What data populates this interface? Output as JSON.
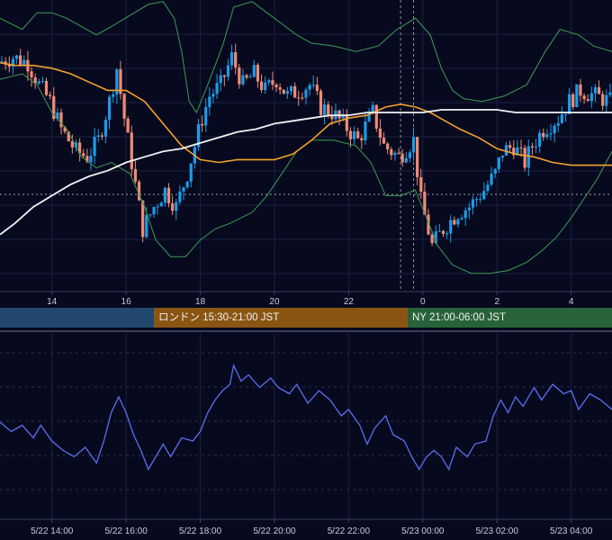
{
  "chart_data": [
    {
      "type": "candlestick",
      "panel": "price",
      "x_tick_labels": [
        "14",
        "16",
        "18",
        "20",
        "22",
        "0",
        "2",
        "4"
      ],
      "x_ticks_hours": [
        14,
        16,
        18,
        20,
        22,
        24,
        26,
        28
      ],
      "x_range_hours": [
        12.6,
        29.1
      ],
      "grid": true,
      "overlays": [
        {
          "label": "bollinger-upper",
          "color": "#3f9a55"
        },
        {
          "label": "bollinger-lower",
          "color": "#3f9a55"
        },
        {
          "label": "moving-average-short",
          "color": "#f3a02e"
        },
        {
          "label": "moving-average-long",
          "color": "#f2f2f2"
        }
      ],
      "candle_colors": {
        "up": "#1e9be8",
        "down": "#f28a74"
      },
      "anchors": [
        [
          12.6,
          0.8
        ],
        [
          13.0,
          0.82
        ],
        [
          13.4,
          0.8
        ],
        [
          13.7,
          0.72
        ],
        [
          14.0,
          0.66
        ],
        [
          14.3,
          0.56
        ],
        [
          14.7,
          0.48
        ],
        [
          15.0,
          0.46
        ],
        [
          15.3,
          0.52
        ],
        [
          15.6,
          0.66
        ],
        [
          15.8,
          0.78
        ],
        [
          16.0,
          0.6
        ],
        [
          16.3,
          0.36
        ],
        [
          16.5,
          0.2
        ],
        [
          16.8,
          0.28
        ],
        [
          17.1,
          0.34
        ],
        [
          17.4,
          0.28
        ],
        [
          17.7,
          0.4
        ],
        [
          17.9,
          0.5
        ],
        [
          18.1,
          0.6
        ],
        [
          18.3,
          0.68
        ],
        [
          18.6,
          0.72
        ],
        [
          18.9,
          0.82
        ],
        [
          19.2,
          0.72
        ],
        [
          19.5,
          0.76
        ],
        [
          19.8,
          0.7
        ],
        [
          20.1,
          0.74
        ],
        [
          20.4,
          0.68
        ],
        [
          20.7,
          0.7
        ],
        [
          21.0,
          0.72
        ],
        [
          21.3,
          0.64
        ],
        [
          21.6,
          0.62
        ],
        [
          21.9,
          0.58
        ],
        [
          22.3,
          0.52
        ],
        [
          22.7,
          0.62
        ],
        [
          23.0,
          0.5
        ],
        [
          23.4,
          0.46
        ],
        [
          23.8,
          0.52
        ],
        [
          24.0,
          0.3
        ],
        [
          24.3,
          0.14
        ],
        [
          24.6,
          0.2
        ],
        [
          25.0,
          0.26
        ],
        [
          25.3,
          0.28
        ],
        [
          25.7,
          0.34
        ],
        [
          26.0,
          0.4
        ],
        [
          26.2,
          0.48
        ],
        [
          26.5,
          0.5
        ],
        [
          26.8,
          0.44
        ],
        [
          27.0,
          0.5
        ],
        [
          27.3,
          0.56
        ],
        [
          27.7,
          0.6
        ],
        [
          28.0,
          0.66
        ],
        [
          28.3,
          0.7
        ],
        [
          28.7,
          0.68
        ],
        [
          29.1,
          0.66
        ]
      ],
      "bollinger_upper": [
        [
          12.6,
          0.96
        ],
        [
          13.2,
          0.92
        ],
        [
          13.6,
          0.98
        ],
        [
          14.0,
          0.98
        ],
        [
          14.4,
          0.96
        ],
        [
          14.8,
          0.93
        ],
        [
          15.2,
          0.9
        ],
        [
          15.6,
          0.93
        ],
        [
          16.1,
          0.97
        ],
        [
          16.6,
          1.01
        ],
        [
          17.0,
          1.02
        ],
        [
          17.3,
          0.96
        ],
        [
          17.5,
          0.84
        ],
        [
          17.7,
          0.66
        ],
        [
          17.9,
          0.62
        ],
        [
          18.2,
          0.72
        ],
        [
          18.6,
          0.86
        ],
        [
          18.9,
          1.0
        ],
        [
          19.4,
          1.02
        ],
        [
          19.8,
          0.98
        ],
        [
          20.2,
          0.94
        ],
        [
          20.6,
          0.9
        ],
        [
          21.0,
          0.87
        ],
        [
          21.6,
          0.86
        ],
        [
          22.2,
          0.84
        ],
        [
          22.8,
          0.86
        ],
        [
          23.3,
          0.92
        ],
        [
          23.8,
          0.96
        ],
        [
          24.2,
          0.9
        ],
        [
          24.5,
          0.78
        ],
        [
          24.8,
          0.7
        ],
        [
          25.1,
          0.67
        ],
        [
          25.6,
          0.66
        ],
        [
          26.2,
          0.68
        ],
        [
          26.8,
          0.72
        ],
        [
          27.3,
          0.84
        ],
        [
          27.7,
          0.92
        ],
        [
          28.2,
          0.9
        ],
        [
          28.6,
          0.86
        ],
        [
          29.1,
          0.84
        ]
      ],
      "bollinger_lower": [
        [
          12.6,
          0.74
        ],
        [
          13.2,
          0.76
        ],
        [
          13.6,
          0.72
        ],
        [
          14.0,
          0.62
        ],
        [
          14.4,
          0.56
        ],
        [
          14.8,
          0.46
        ],
        [
          15.2,
          0.42
        ],
        [
          15.6,
          0.44
        ],
        [
          16.1,
          0.4
        ],
        [
          16.5,
          0.28
        ],
        [
          16.8,
          0.16
        ],
        [
          17.2,
          0.1
        ],
        [
          17.6,
          0.1
        ],
        [
          18.0,
          0.16
        ],
        [
          18.4,
          0.2
        ],
        [
          18.8,
          0.22
        ],
        [
          19.4,
          0.26
        ],
        [
          19.8,
          0.32
        ],
        [
          20.2,
          0.4
        ],
        [
          20.6,
          0.48
        ],
        [
          21.0,
          0.52
        ],
        [
          21.6,
          0.52
        ],
        [
          22.2,
          0.5
        ],
        [
          22.6,
          0.44
        ],
        [
          23.0,
          0.32
        ],
        [
          23.4,
          0.32
        ],
        [
          23.8,
          0.34
        ],
        [
          24.1,
          0.24
        ],
        [
          24.4,
          0.14
        ],
        [
          24.8,
          0.07
        ],
        [
          25.3,
          0.04
        ],
        [
          25.8,
          0.04
        ],
        [
          26.3,
          0.05
        ],
        [
          26.8,
          0.08
        ],
        [
          27.2,
          0.12
        ],
        [
          27.6,
          0.17
        ],
        [
          28.0,
          0.24
        ],
        [
          28.4,
          0.32
        ],
        [
          28.7,
          0.38
        ],
        [
          29.1,
          0.48
        ]
      ],
      "ma_short": [
        [
          12.6,
          0.8
        ],
        [
          13.0,
          0.79
        ],
        [
          13.5,
          0.79
        ],
        [
          14.0,
          0.78
        ],
        [
          14.5,
          0.76
        ],
        [
          15.0,
          0.73
        ],
        [
          15.5,
          0.7
        ],
        [
          16.0,
          0.7
        ],
        [
          16.5,
          0.66
        ],
        [
          17.0,
          0.58
        ],
        [
          17.5,
          0.5
        ],
        [
          18.0,
          0.45
        ],
        [
          18.5,
          0.44
        ],
        [
          19.0,
          0.45
        ],
        [
          19.5,
          0.45
        ],
        [
          20.0,
          0.45
        ],
        [
          20.5,
          0.47
        ],
        [
          21.0,
          0.52
        ],
        [
          21.5,
          0.58
        ],
        [
          22.0,
          0.6
        ],
        [
          22.5,
          0.61
        ],
        [
          23.0,
          0.64
        ],
        [
          23.4,
          0.65
        ],
        [
          23.8,
          0.64
        ],
        [
          24.2,
          0.62
        ],
        [
          24.6,
          0.59
        ],
        [
          25.0,
          0.56
        ],
        [
          25.5,
          0.53
        ],
        [
          26.0,
          0.49
        ],
        [
          26.5,
          0.47
        ],
        [
          27.0,
          0.46
        ],
        [
          27.5,
          0.44
        ],
        [
          28.0,
          0.43
        ],
        [
          28.5,
          0.43
        ],
        [
          29.1,
          0.43
        ]
      ],
      "ma_long": [
        [
          12.6,
          0.18
        ],
        [
          13.0,
          0.22
        ],
        [
          13.5,
          0.28
        ],
        [
          14.0,
          0.32
        ],
        [
          14.5,
          0.36
        ],
        [
          15.0,
          0.39
        ],
        [
          15.5,
          0.41
        ],
        [
          16.0,
          0.44
        ],
        [
          16.5,
          0.46
        ],
        [
          17.0,
          0.48
        ],
        [
          17.5,
          0.49
        ],
        [
          18.0,
          0.51
        ],
        [
          18.5,
          0.53
        ],
        [
          19.0,
          0.55
        ],
        [
          19.5,
          0.56
        ],
        [
          20.0,
          0.58
        ],
        [
          20.5,
          0.59
        ],
        [
          21.0,
          0.6
        ],
        [
          21.5,
          0.61
        ],
        [
          22.0,
          0.61
        ],
        [
          22.5,
          0.62
        ],
        [
          23.0,
          0.62
        ],
        [
          23.5,
          0.62
        ],
        [
          24.0,
          0.62
        ],
        [
          24.5,
          0.63
        ],
        [
          25.0,
          0.63
        ],
        [
          25.5,
          0.63
        ],
        [
          26.0,
          0.63
        ],
        [
          26.5,
          0.62
        ],
        [
          27.0,
          0.62
        ],
        [
          27.5,
          0.62
        ],
        [
          28.0,
          0.62
        ],
        [
          28.5,
          0.62
        ],
        [
          29.1,
          0.62
        ]
      ],
      "reference_time_markers_hours": [
        23.4,
        23.75
      ],
      "sessions": [
        {
          "label": "",
          "color": "#22486f"
        },
        {
          "label": "ロンドン 15:30-21:00 JST",
          "color": "#8a5512"
        },
        {
          "label": "NY 21:00-06:00 JST",
          "color": "#276238"
        }
      ]
    },
    {
      "type": "line",
      "panel": "oscillator",
      "x_tick_labels": [
        "5/22 14:00",
        "5/22 16:00",
        "5/22 18:00",
        "5/22 20:00",
        "5/22 22:00",
        "5/23 00:00",
        "5/23 02:00",
        "5/23 04:00"
      ],
      "x_ticks_hours": [
        14,
        16,
        18,
        20,
        22,
        24,
        26,
        28
      ],
      "grid": true,
      "series": [
        {
          "color": "#5b6ef0",
          "values": [
            [
              12.6,
              0.52
            ],
            [
              12.9,
              0.46
            ],
            [
              13.2,
              0.5
            ],
            [
              13.5,
              0.42
            ],
            [
              13.7,
              0.5
            ],
            [
              14.0,
              0.4
            ],
            [
              14.3,
              0.34
            ],
            [
              14.6,
              0.3
            ],
            [
              14.9,
              0.36
            ],
            [
              15.2,
              0.26
            ],
            [
              15.4,
              0.4
            ],
            [
              15.6,
              0.58
            ],
            [
              15.8,
              0.68
            ],
            [
              16.0,
              0.58
            ],
            [
              16.2,
              0.44
            ],
            [
              16.4,
              0.34
            ],
            [
              16.6,
              0.22
            ],
            [
              16.8,
              0.3
            ],
            [
              17.0,
              0.38
            ],
            [
              17.2,
              0.3
            ],
            [
              17.5,
              0.42
            ],
            [
              17.8,
              0.4
            ],
            [
              18.0,
              0.46
            ],
            [
              18.2,
              0.58
            ],
            [
              18.4,
              0.66
            ],
            [
              18.6,
              0.72
            ],
            [
              18.8,
              0.76
            ],
            [
              18.9,
              0.88
            ],
            [
              19.1,
              0.78
            ],
            [
              19.3,
              0.82
            ],
            [
              19.6,
              0.74
            ],
            [
              19.9,
              0.8
            ],
            [
              20.1,
              0.74
            ],
            [
              20.4,
              0.7
            ],
            [
              20.6,
              0.76
            ],
            [
              20.9,
              0.64
            ],
            [
              21.2,
              0.72
            ],
            [
              21.5,
              0.66
            ],
            [
              21.8,
              0.56
            ],
            [
              22.0,
              0.6
            ],
            [
              22.3,
              0.5
            ],
            [
              22.5,
              0.38
            ],
            [
              22.7,
              0.48
            ],
            [
              23.0,
              0.56
            ],
            [
              23.2,
              0.44
            ],
            [
              23.5,
              0.4
            ],
            [
              23.7,
              0.3
            ],
            [
              23.9,
              0.22
            ],
            [
              24.1,
              0.3
            ],
            [
              24.3,
              0.34
            ],
            [
              24.5,
              0.3
            ],
            [
              24.7,
              0.22
            ],
            [
              24.9,
              0.36
            ],
            [
              25.2,
              0.3
            ],
            [
              25.4,
              0.38
            ],
            [
              25.7,
              0.4
            ],
            [
              25.9,
              0.56
            ],
            [
              26.1,
              0.66
            ],
            [
              26.3,
              0.58
            ],
            [
              26.5,
              0.68
            ],
            [
              26.7,
              0.62
            ],
            [
              27.0,
              0.74
            ],
            [
              27.2,
              0.66
            ],
            [
              27.5,
              0.76
            ],
            [
              27.8,
              0.7
            ],
            [
              28.0,
              0.72
            ],
            [
              28.2,
              0.6
            ],
            [
              28.5,
              0.7
            ],
            [
              28.8,
              0.66
            ],
            [
              29.1,
              0.6
            ]
          ]
        }
      ]
    }
  ]
}
